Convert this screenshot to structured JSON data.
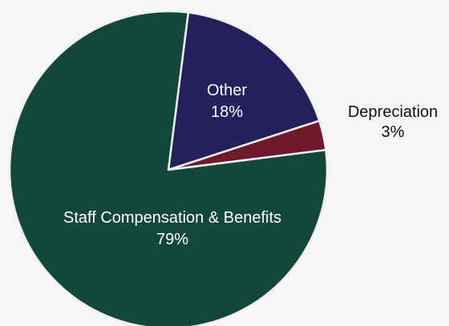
{
  "chart_data": {
    "type": "pie",
    "slices": [
      {
        "label": "Staff Compensation & Benefits",
        "value": 79,
        "value_label": "79%",
        "color": "#14473b"
      },
      {
        "label": "Other",
        "value": 18,
        "value_label": "18%",
        "color": "#24205a"
      },
      {
        "label": "Depreciation",
        "value": 3,
        "value_label": "3%",
        "color": "#6e1a2c"
      }
    ],
    "slice_border_color": "#f0f0f0",
    "legend": "none",
    "labels": "on-slice"
  }
}
